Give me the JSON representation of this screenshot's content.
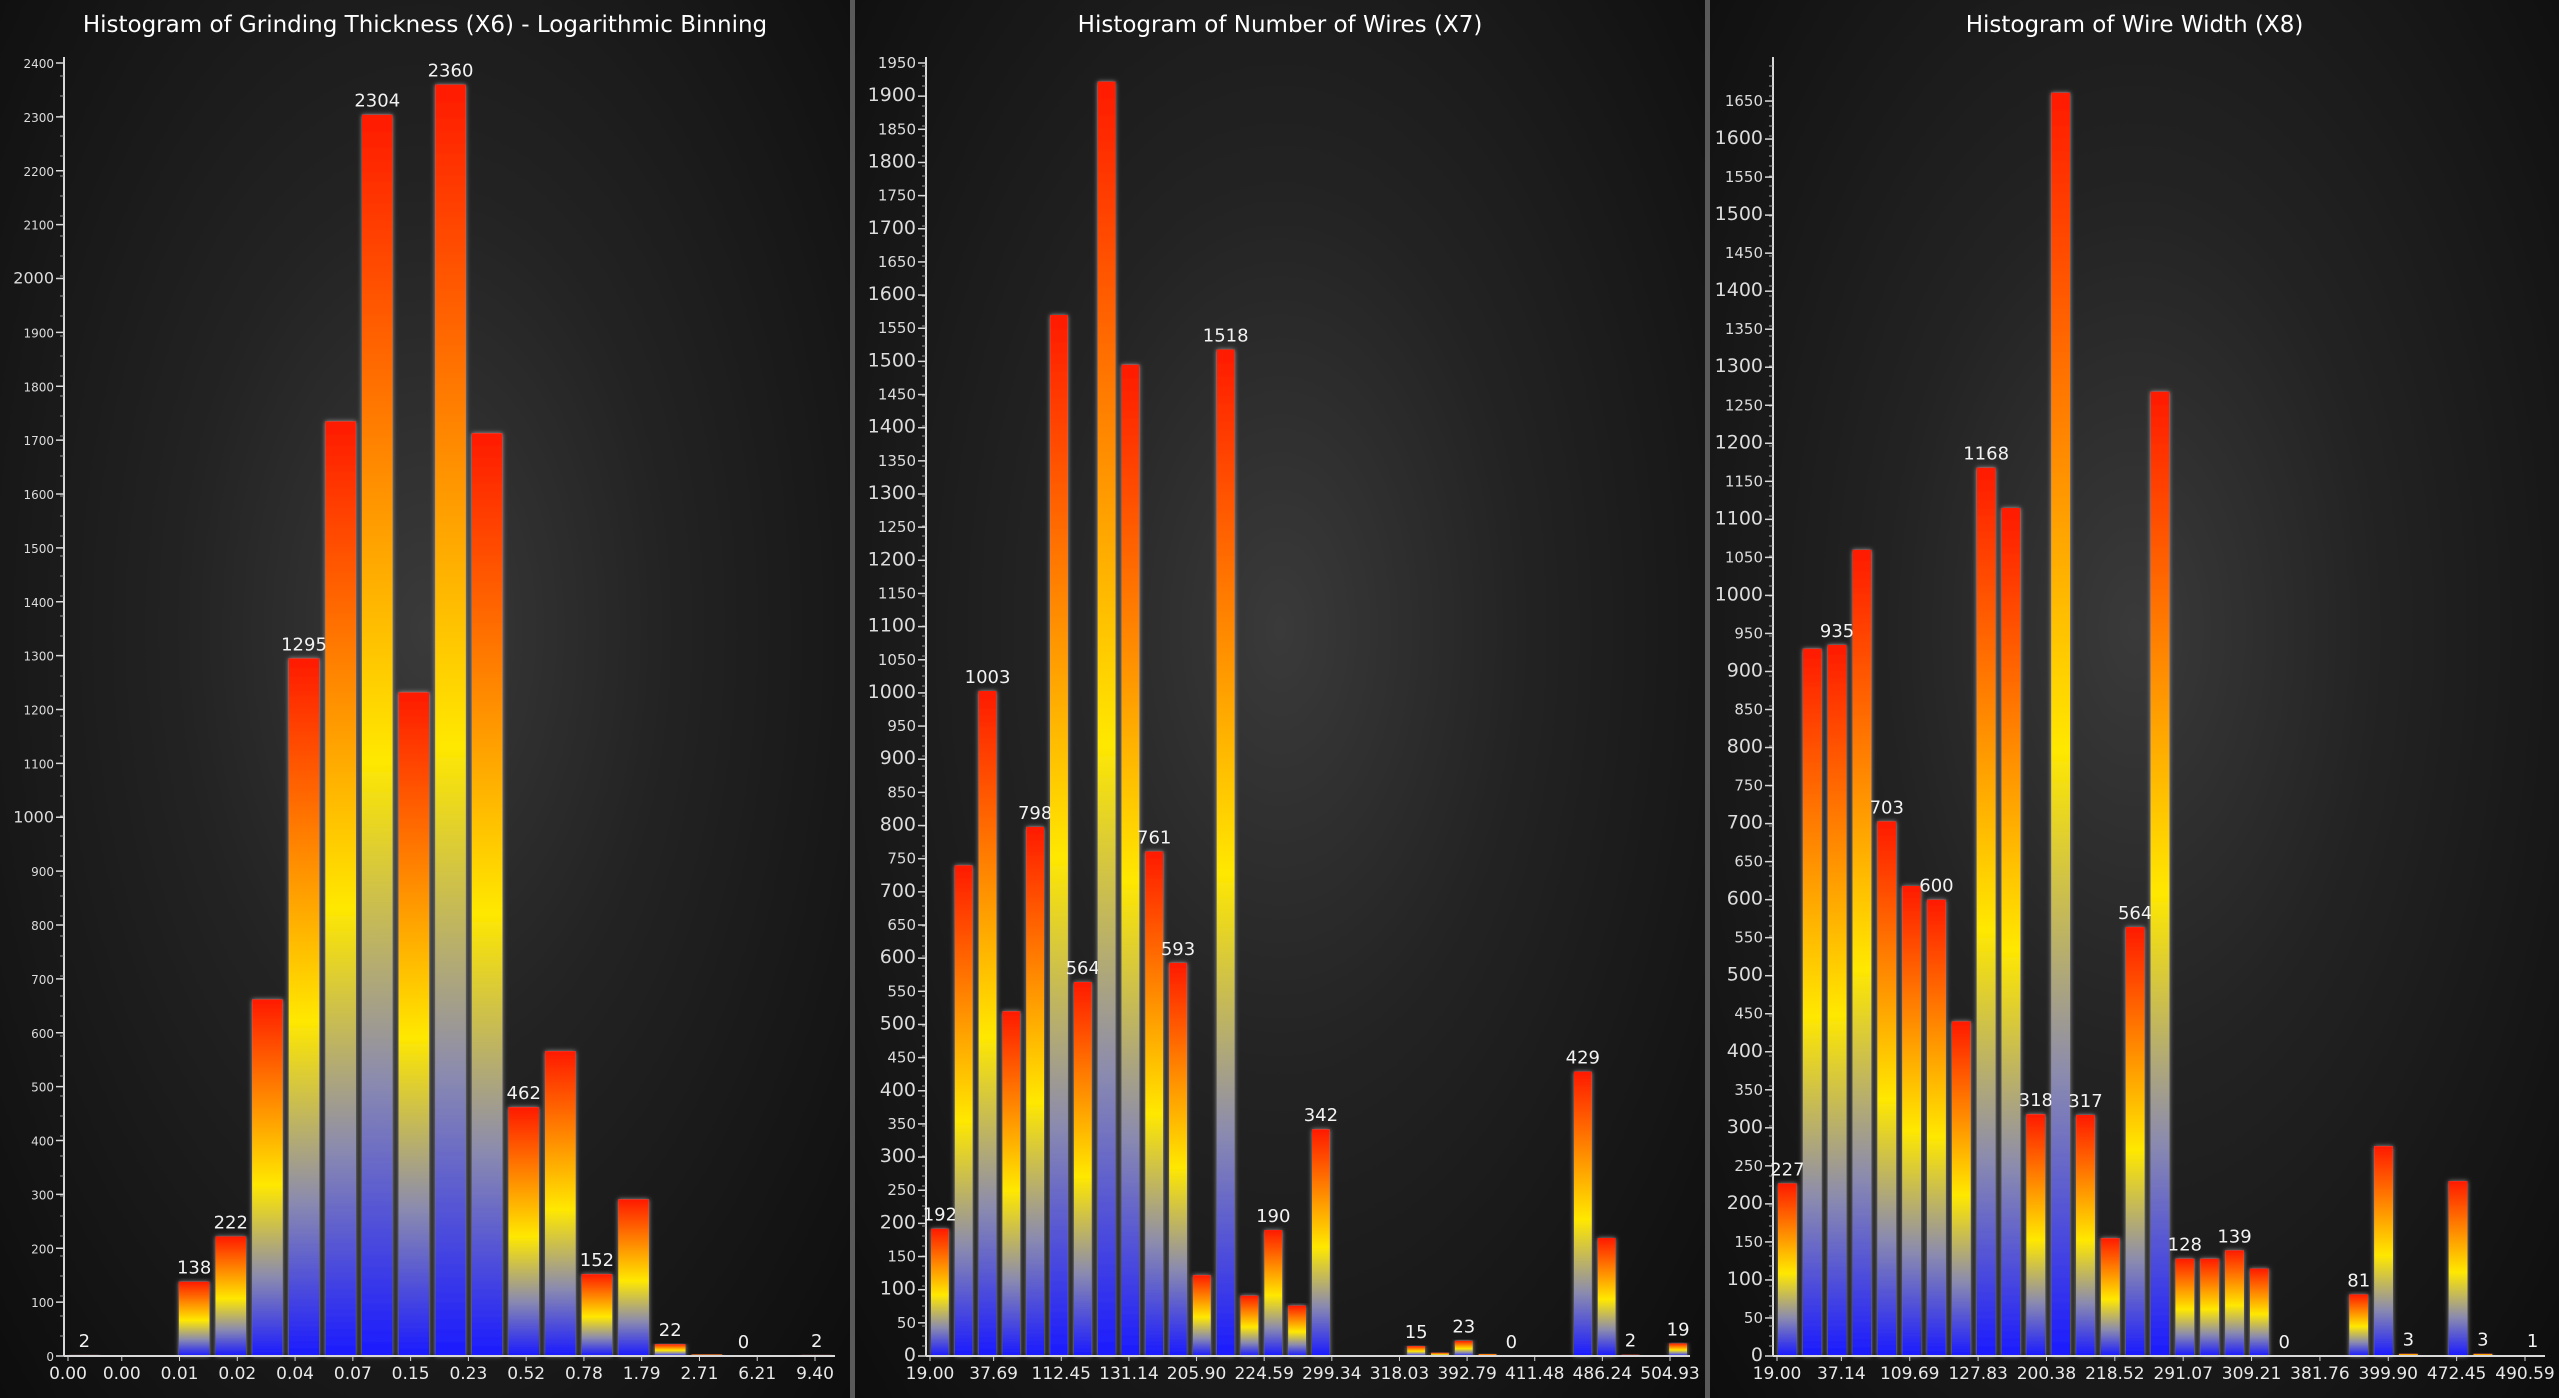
{
  "colors": {
    "bar_top": "#ff1a00",
    "bar_mid": "#ffe800",
    "bar_low": "#8a8ab0",
    "bar_bottom": "#1a1aff",
    "axis": "#d9d9d9"
  },
  "chart_data": [
    {
      "type": "bar",
      "title": "Histogram of Grinding Thickness (X6) - Logarithmic Binning",
      "xlabel": "",
      "ylabel": "",
      "ylim": [
        0,
        2400
      ],
      "y_major_ticks": [
        0,
        100,
        200,
        300,
        400,
        500,
        600,
        700,
        800,
        900,
        1000,
        1100,
        1200,
        1300,
        1400,
        1500,
        1600,
        1700,
        1800,
        1900,
        2000,
        2100,
        2200,
        2300,
        2400
      ],
      "y_emphasized_ticks": [
        1000,
        2000
      ],
      "x_tick_labels": [
        "0.00",
        "0.00",
        "0.01",
        "0.02",
        "0.04",
        "0.07",
        "0.15",
        "0.23",
        "0.52",
        "0.78",
        "1.79",
        "2.71",
        "6.21",
        "9.40"
      ],
      "values": [
        2,
        0,
        0,
        138,
        222,
        662,
        1295,
        1735,
        2304,
        1232,
        2360,
        1713,
        462,
        566,
        152,
        291,
        22,
        3,
        0,
        0,
        2
      ],
      "data_labels": [
        "2",
        "",
        "",
        "138",
        "222",
        "",
        "1295",
        "",
        "2304",
        "",
        "2360",
        "",
        "462",
        "",
        "152",
        "",
        "22",
        "",
        "0",
        "",
        "2"
      ],
      "grid": false,
      "legend": "none"
    },
    {
      "type": "bar",
      "title": "Histogram of Number of Wires (X7)",
      "xlabel": "",
      "ylabel": "",
      "ylim": [
        0,
        1950
      ],
      "y_major_ticks": [
        0,
        50,
        100,
        150,
        200,
        250,
        300,
        350,
        400,
        450,
        500,
        550,
        600,
        650,
        700,
        750,
        800,
        850,
        900,
        950,
        1000,
        1050,
        1100,
        1150,
        1200,
        1250,
        1300,
        1350,
        1400,
        1450,
        1500,
        1550,
        1600,
        1650,
        1700,
        1750,
        1800,
        1850,
        1900,
        1950
      ],
      "y_emphasized_ticks": [
        0,
        100,
        200,
        300,
        400,
        500,
        600,
        700,
        800,
        900,
        1000,
        1100,
        1200,
        1300,
        1400,
        1500,
        1600,
        1700,
        1800,
        1900
      ],
      "x_tick_labels": [
        "19.00",
        "37.69",
        "112.45",
        "131.14",
        "205.90",
        "224.59",
        "299.34",
        "318.03",
        "392.79",
        "411.48",
        "486.24",
        "504.93"
      ],
      "values": [
        192,
        740,
        1003,
        520,
        798,
        1570,
        564,
        1922,
        1495,
        761,
        593,
        122,
        1518,
        91,
        190,
        76,
        342,
        0,
        0,
        0,
        15,
        5,
        23,
        3,
        0,
        0,
        0,
        429,
        178,
        2,
        0,
        19
      ],
      "data_labels": [
        "192",
        "",
        "1003",
        "",
        "798",
        "",
        "564",
        "",
        "",
        "761",
        "593",
        "",
        "1518",
        "",
        "190",
        "",
        "342",
        "",
        "",
        "",
        "15",
        "",
        "23",
        "",
        "0",
        "",
        "",
        "429",
        "",
        "2",
        "",
        "19"
      ],
      "grid": false,
      "legend": "none"
    },
    {
      "type": "bar",
      "title": "Histogram of Wire Width (X8)",
      "xlabel": "",
      "ylabel": "",
      "ylim": [
        0,
        1700
      ],
      "y_major_ticks": [
        0,
        50,
        100,
        150,
        200,
        250,
        300,
        350,
        400,
        450,
        500,
        550,
        600,
        650,
        700,
        750,
        800,
        850,
        900,
        950,
        1000,
        1050,
        1100,
        1150,
        1200,
        1250,
        1300,
        1350,
        1400,
        1450,
        1500,
        1550,
        1600,
        1650
      ],
      "y_emphasized_ticks": [
        0,
        100,
        200,
        300,
        400,
        500,
        600,
        700,
        800,
        900,
        1000,
        1100,
        1200,
        1300,
        1400,
        1500,
        1600
      ],
      "x_tick_labels": [
        "19.00",
        "37.14",
        "109.69",
        "127.83",
        "200.38",
        "218.52",
        "291.07",
        "309.21",
        "381.76",
        "399.90",
        "472.45",
        "490.59"
      ],
      "values": [
        227,
        930,
        935,
        1060,
        703,
        618,
        600,
        440,
        1168,
        1115,
        318,
        1661,
        317,
        155,
        564,
        1268,
        128,
        128,
        139,
        115,
        0,
        0,
        0,
        81,
        276,
        3,
        0,
        230,
        3,
        0,
        1
      ],
      "data_labels": [
        "227",
        "",
        "935",
        "",
        "703",
        "",
        "600",
        "",
        "1168",
        "",
        "318",
        "",
        "317",
        "",
        "564",
        "",
        "128",
        "",
        "139",
        "",
        "0",
        "",
        "",
        "81",
        "",
        "3",
        "",
        "",
        "3",
        "",
        "1"
      ],
      "grid": false,
      "legend": "none"
    }
  ]
}
